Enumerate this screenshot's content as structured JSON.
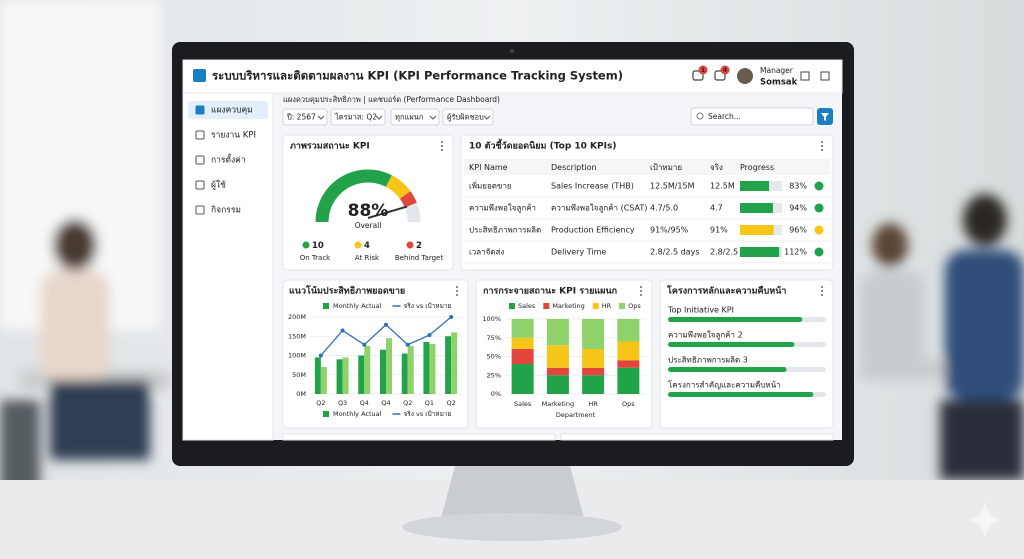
{
  "header": {
    "title": "ระบบบริหารและติดตามผลงาน KPI (KPI Performance Tracking System)",
    "badges": [
      1,
      4
    ],
    "user_role": "Manager",
    "user_name": "Somsak"
  },
  "sidebar": [
    "แผงควบคุม",
    "รายงาน KPI",
    "การตั้งค่า",
    "ผู้ใช้",
    "กิจกรรม"
  ],
  "breadcrumb": "แผงควบคุมประสิทธิภาพ | แดชบอร์ด (Performance Dashboard)",
  "filters": [
    "ปี: 2567",
    "ไตรมาส: Q2",
    "ทุกแผนก",
    "ผู้รับผิดชอบ"
  ],
  "search_placeholder": "Search...",
  "status_card": {
    "title": "ภาพรวมสถานะ KPI",
    "gauge_value": 88,
    "gauge_label": "88%",
    "gauge_caption": "Overall",
    "counts": [
      {
        "count": 10,
        "label": "On Track",
        "color": "#22a34a"
      },
      {
        "count": 4,
        "label": "At Risk",
        "color": "#f5c518"
      },
      {
        "count": 2,
        "label": "Behind Target",
        "color": "#e0463c"
      }
    ]
  },
  "top_kpis": {
    "title": "10 ตัวชี้วัดยอดนิยม (Top 10 KPIs)",
    "columns": [
      "KPI Name",
      "Description",
      "เป้าหมาย",
      "จริง",
      "Progress"
    ],
    "rows": [
      {
        "name": "เพิ่มยอดขาย",
        "description": "Sales Increase (THB)",
        "target": "12.5M/15M",
        "actual": "12.5M",
        "progress": 83,
        "progress_label": "83%",
        "color": "#22a34a"
      },
      {
        "name": "ความพึงพอใจลูกค้า",
        "description": "ความพึงพอใจลูกค้า (CSAT)",
        "target": "4.7/5.0",
        "actual": "4.7",
        "progress": 94,
        "progress_label": "94%",
        "color": "#22a34a"
      },
      {
        "name": "ประสิทธิภาพการผลิต",
        "description": "Production Efficiency",
        "target": "91%/95%",
        "actual": "91%",
        "progress": 96,
        "progress_label": "96%",
        "color": "#f5c518"
      },
      {
        "name": "เวลาจัดส่ง",
        "description": "Delivery Time",
        "target": "2.8/2.5 days",
        "actual": "2.8/2.5",
        "progress": 112,
        "progress_label": "112%",
        "color": "#22a34a"
      }
    ]
  },
  "sales_chart": {
    "type": "bar",
    "title": "แนวโน้มประสิทธิภาพยอดขาย",
    "categories": [
      "Q2",
      "Q3",
      "Q4",
      "Q4",
      "Q2",
      "Q1",
      "Q2"
    ],
    "series": [
      {
        "name": "Monthly Actual",
        "color": "#22a34a",
        "values": [
          95,
          90,
          100,
          115,
          105,
          135,
          150
        ]
      },
      {
        "color": "#8fd16a",
        "values": [
          70,
          95,
          125,
          145,
          125,
          130,
          160
        ]
      },
      {
        "name": "จริง vs เป้าหมาย",
        "color": "#2f6fb5",
        "type": "line",
        "values": [
          100,
          165,
          128,
          180,
          128,
          153,
          200
        ]
      }
    ],
    "ylim": [
      0,
      200
    ],
    "yticks": [
      {
        "value": 0,
        "label": "0M"
      },
      {
        "value": 50,
        "label": "50M"
      },
      {
        "value": 100,
        "label": "100M"
      },
      {
        "value": 150,
        "label": "150M"
      },
      {
        "value": 200,
        "label": "200M"
      }
    ]
  },
  "dept_chart": {
    "type": "stacked_bar",
    "title": "การกระจายสถานะ KPI รายแผนก",
    "categories": [
      "Sales",
      "Marketing",
      "HR",
      "Ops"
    ],
    "x_label": "Department",
    "series": [
      {
        "name": "Sales",
        "color": "#22a34a",
        "values": [
          40,
          25,
          25,
          35
        ]
      },
      {
        "name": "Marketing",
        "color": "#e0463c",
        "values": [
          20,
          10,
          10,
          10
        ]
      },
      {
        "name": "HR",
        "color": "#f5c518",
        "values": [
          15,
          30,
          25,
          25
        ]
      },
      {
        "name": "Ops",
        "color": "#8fd16a",
        "values": [
          25,
          35,
          40,
          30
        ]
      }
    ],
    "ylim": [
      0,
      100
    ],
    "yticks": [
      {
        "value": 0,
        "label": "0%"
      },
      {
        "value": 25,
        "label": "25%"
      },
      {
        "value": 50,
        "label": "50%"
      },
      {
        "value": 75,
        "label": "75%"
      },
      {
        "value": 100,
        "label": "100%"
      }
    ]
  },
  "projects": {
    "title": "โครงการหลักและความคืบหน้า",
    "items": [
      {
        "name": "Top Initiative KPI",
        "progress": 85
      },
      {
        "name": "ความพึงพอใจลูกค้า 2",
        "progress": 80
      },
      {
        "name": "ประสิทธิภาพการผลิต 3",
        "progress": 75
      },
      {
        "name": "โครงการสำคัญและความคืบหน้า",
        "progress": 92
      }
    ]
  }
}
